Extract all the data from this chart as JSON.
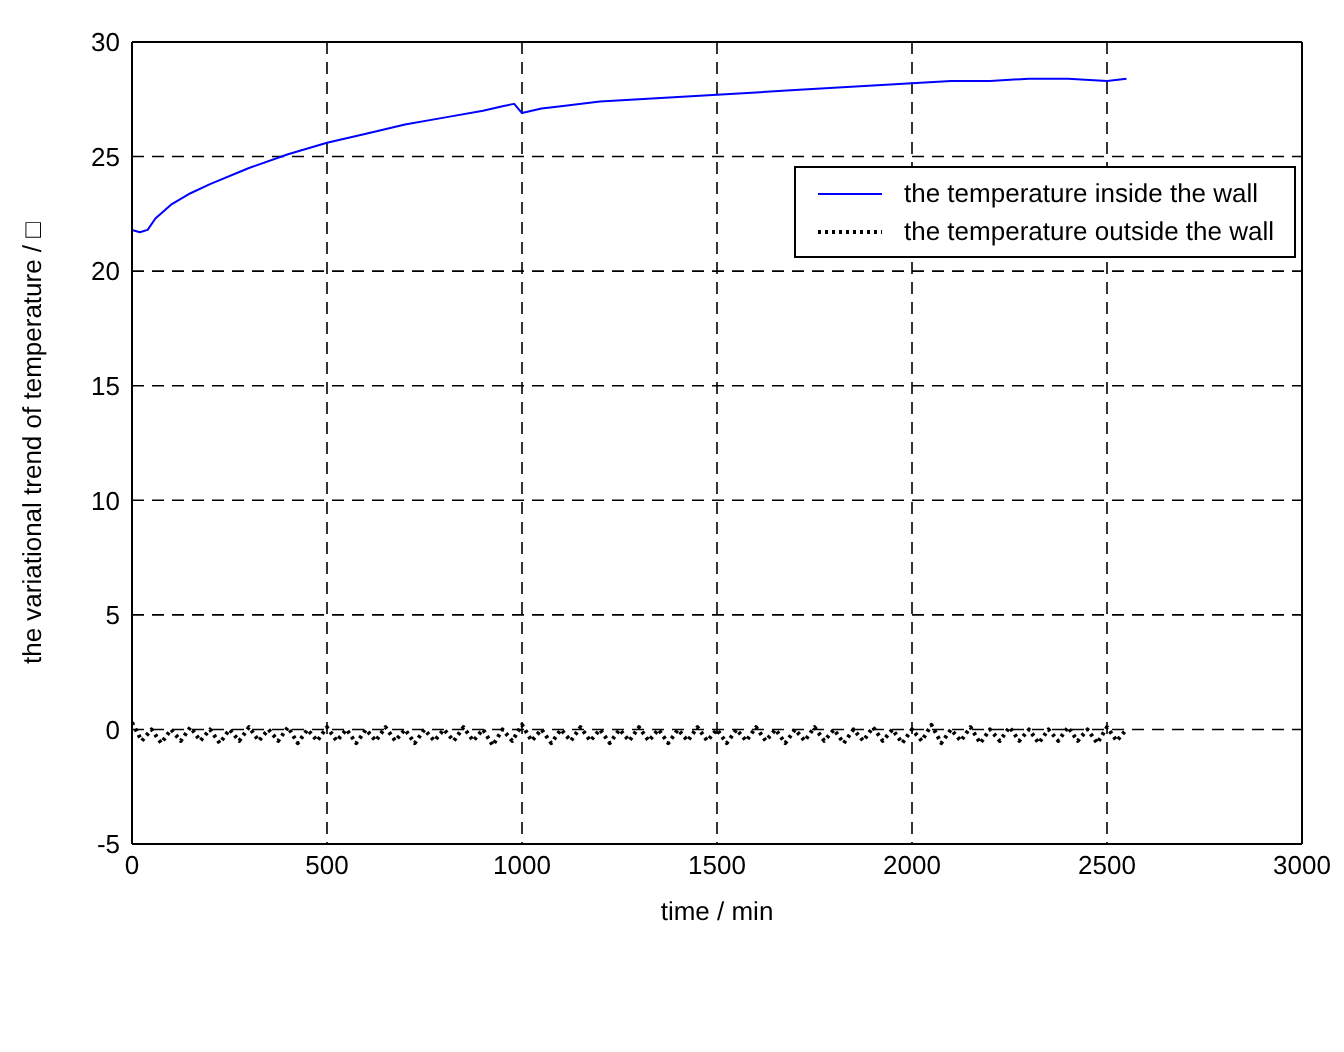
{
  "chart_data": {
    "type": "line",
    "xlabel": "time / min",
    "ylabel": "the variational trend of temperature / □",
    "xlim": [
      0,
      3000
    ],
    "xticks": [
      0,
      500,
      1000,
      1500,
      2000,
      2500,
      3000
    ],
    "ylim": [
      -5,
      30
    ],
    "yticks": [
      -5,
      0,
      5,
      10,
      15,
      20,
      25,
      30
    ],
    "grid": true,
    "legend": "top right",
    "series": [
      {
        "name": "the temperature inside the wall",
        "color": "#0000ff",
        "line_style": "solid",
        "x": [
          0,
          20,
          40,
          60,
          100,
          150,
          200,
          300,
          400,
          500,
          600,
          700,
          800,
          900,
          950,
          980,
          1000,
          1050,
          1100,
          1200,
          1300,
          1400,
          1500,
          1600,
          1700,
          1800,
          1900,
          2000,
          2100,
          2200,
          2300,
          2400,
          2500,
          2550
        ],
        "values": [
          21.8,
          21.7,
          21.8,
          22.3,
          22.9,
          23.4,
          23.8,
          24.5,
          25.1,
          25.6,
          26.0,
          26.4,
          26.7,
          27.0,
          27.2,
          27.3,
          26.9,
          27.1,
          27.2,
          27.4,
          27.5,
          27.6,
          27.7,
          27.8,
          27.9,
          28.0,
          28.1,
          28.2,
          28.3,
          28.3,
          28.4,
          28.4,
          28.3,
          28.4
        ]
      },
      {
        "name": "the temperature outside the wall",
        "color": "#000000",
        "line_style": "dotted",
        "x": [
          0,
          25,
          50,
          75,
          100,
          125,
          150,
          175,
          200,
          225,
          250,
          275,
          300,
          325,
          350,
          375,
          400,
          425,
          450,
          475,
          500,
          525,
          550,
          575,
          600,
          625,
          650,
          675,
          700,
          725,
          750,
          775,
          800,
          825,
          850,
          875,
          900,
          925,
          950,
          975,
          1000,
          1025,
          1050,
          1075,
          1100,
          1125,
          1150,
          1175,
          1200,
          1225,
          1250,
          1275,
          1300,
          1325,
          1350,
          1375,
          1400,
          1425,
          1450,
          1475,
          1500,
          1525,
          1550,
          1575,
          1600,
          1625,
          1650,
          1675,
          1700,
          1725,
          1750,
          1775,
          1800,
          1825,
          1850,
          1875,
          1900,
          1925,
          1950,
          1975,
          2000,
          2025,
          2050,
          2075,
          2100,
          2125,
          2150,
          2175,
          2200,
          2225,
          2250,
          2275,
          2300,
          2325,
          2350,
          2375,
          2400,
          2425,
          2450,
          2475,
          2500,
          2525,
          2550
        ],
        "values": [
          0.3,
          -0.5,
          0,
          -0.6,
          0,
          -0.5,
          0.1,
          -0.5,
          0,
          -0.6,
          0,
          -0.5,
          0.1,
          -0.5,
          0,
          -0.5,
          0.1,
          -0.6,
          0,
          -0.5,
          0.1,
          -0.5,
          0,
          -0.6,
          0,
          -0.5,
          0.1,
          -0.5,
          0,
          -0.6,
          0,
          -0.5,
          0,
          -0.5,
          0.1,
          -0.5,
          0,
          -0.7,
          0,
          -0.5,
          0.2,
          -0.5,
          0,
          -0.6,
          0,
          -0.5,
          0.1,
          -0.5,
          0,
          -0.6,
          0,
          -0.5,
          0.1,
          -0.5,
          0,
          -0.6,
          0,
          -0.5,
          0.1,
          -0.5,
          0,
          -0.6,
          0,
          -0.5,
          0.1,
          -0.5,
          0,
          -0.6,
          0,
          -0.5,
          0.1,
          -0.5,
          0,
          -0.6,
          0,
          -0.5,
          0.1,
          -0.5,
          0,
          -0.6,
          0,
          -0.5,
          0.2,
          -0.6,
          0,
          -0.5,
          0.1,
          -0.6,
          0,
          -0.5,
          0.1,
          -0.5,
          0,
          -0.6,
          0,
          -0.5,
          0.1,
          -0.5,
          0,
          -0.6,
          0.1,
          -0.5,
          0
        ]
      }
    ]
  }
}
